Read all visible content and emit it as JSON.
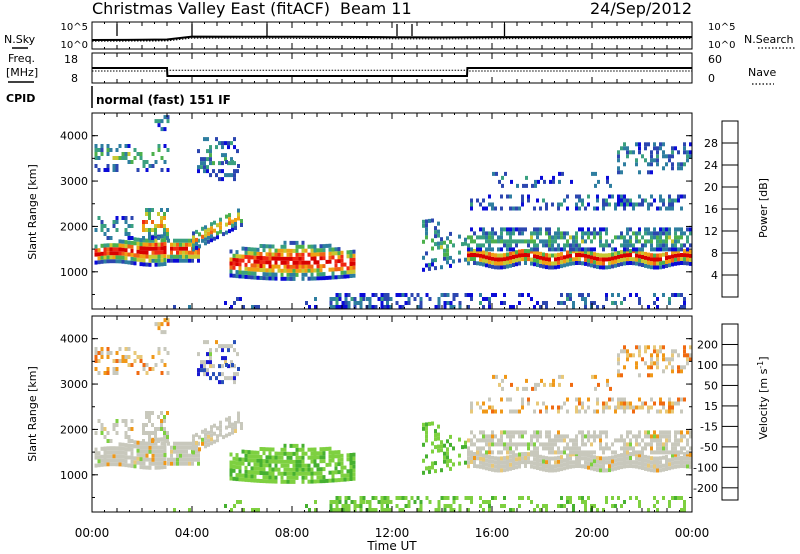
{
  "header": {
    "station": "Christmas Valley East (fitACF)",
    "beam": "Beam 11",
    "date": "24/Sep/2012"
  },
  "noise_panel": {
    "left_label": "N.Sky",
    "left_ticks": [
      "10^5",
      "10^0"
    ],
    "right_label": "N.Search",
    "right_ticks": [
      "10^5",
      "10^0"
    ]
  },
  "freq_panel": {
    "left_label_1": "Freq.",
    "left_label_2": "[MHz]",
    "left_ticks": [
      "18",
      "8"
    ],
    "right_label": "Nave",
    "right_ticks": [
      "60",
      "0"
    ]
  },
  "cpid": {
    "label": "CPID",
    "text": "normal (fast) 151 IF"
  },
  "chart_data": [
    {
      "type": "line",
      "panel": "noise",
      "title": "",
      "xlabel": "",
      "ylabel": "N.Sky",
      "x": [
        "00:00",
        "02:00",
        "03:00",
        "04:00",
        "06:00",
        "08:00",
        "10:00",
        "12:00",
        "14:00",
        "15:00",
        "16:00",
        "20:00",
        "24:00"
      ],
      "series": [
        {
          "name": "N.Sky",
          "values": [
            100,
            110,
            130,
            700,
            680,
            640,
            600,
            500,
            450,
            500,
            520,
            540,
            560
          ]
        },
        {
          "name": "N.Search",
          "values": [
            50,
            55,
            60,
            300,
            280,
            260,
            240,
            200,
            180,
            200,
            210,
            220,
            230
          ]
        }
      ]
    },
    {
      "type": "line",
      "panel": "frequency",
      "title": "",
      "xlabel": "",
      "ylabel": "Freq. [MHz]",
      "x": [
        "00:00",
        "03:00",
        "03:01",
        "15:00",
        "15:01",
        "24:00"
      ],
      "series": [
        {
          "name": "Freq.",
          "values": [
            15,
            15,
            11,
            11,
            15,
            15
          ]
        },
        {
          "name": "Nave",
          "values": [
            33,
            33,
            35,
            35,
            33,
            33
          ]
        }
      ],
      "ylim": [
        8,
        18
      ]
    },
    {
      "type": "heatmap",
      "panel": "power",
      "title": "",
      "xlabel": "",
      "ylabel": "Slant Range [km]",
      "xlim": [
        0,
        24
      ],
      "ylim": [
        180,
        4500
      ],
      "x_ticks": [
        "00:00",
        "04:00",
        "08:00",
        "12:00",
        "16:00",
        "20:00",
        "00:00"
      ],
      "y_ticks": [
        "1000",
        "2000",
        "3000",
        "4000"
      ],
      "colorbar": {
        "label": "Power [dB]",
        "ticks": [
          "4",
          "8",
          "12",
          "16",
          "20",
          "24",
          "28"
        ],
        "colors": [
          "#0a0ad8",
          "#2c46b0",
          "#2e7ea0",
          "#3aa080",
          "#4cb04c",
          "#c8c832",
          "#f0a014",
          "#f06414",
          "#f02814",
          "#d80000"
        ]
      }
    },
    {
      "type": "heatmap",
      "panel": "velocity",
      "title": "",
      "xlabel": "Time UT",
      "ylabel": "Slant Range [km]",
      "xlim": [
        0,
        24
      ],
      "ylim": [
        180,
        4500
      ],
      "x_ticks": [
        "00:00",
        "04:00",
        "08:00",
        "12:00",
        "16:00",
        "20:00",
        "00:00"
      ],
      "y_ticks": [
        "1000",
        "2000",
        "3000",
        "4000"
      ],
      "colorbar": {
        "label": "Velocity [m s",
        "label_sup": "-1",
        "ticks": [
          "200",
          "100",
          "50",
          "15",
          "-15",
          "-50",
          "-100",
          "-200"
        ],
        "colors": [
          "#1a1ad0",
          "#2850b8",
          "#1e7c30",
          "#46b030",
          "#7ed040",
          "#c8c8bc",
          "#e8c878",
          "#f09818",
          "#f06a10",
          "#f03c10",
          "#e00000"
        ]
      }
    }
  ],
  "x_axis_title": "Time UT",
  "x_tick_labels": [
    "00:00",
    "04:00",
    "08:00",
    "12:00",
    "16:00",
    "20:00",
    "00:00"
  ]
}
